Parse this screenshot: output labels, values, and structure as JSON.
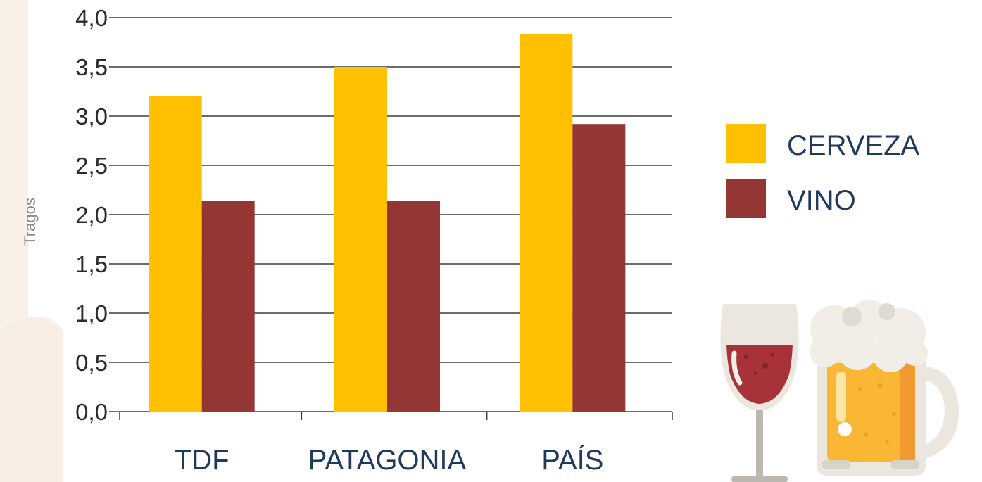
{
  "chart_data": {
    "type": "bar",
    "categories": [
      "TDF",
      "PATAGONIA",
      "PAÍS"
    ],
    "series": [
      {
        "name": "CERVEZA",
        "color": "#fec000",
        "values": [
          3.2,
          3.5,
          3.83
        ]
      },
      {
        "name": "VINO",
        "color": "#943634",
        "values": [
          2.14,
          2.14,
          2.92
        ]
      }
    ],
    "ylabel": "Tragos",
    "ylim": [
      0,
      4
    ],
    "yticks": [
      0,
      0.5,
      1,
      1.5,
      2,
      2.5,
      3,
      3.5,
      4
    ],
    "ytick_labels": [
      "0,0",
      "0,5",
      "1,0",
      "1,5",
      "2,0",
      "2,5",
      "3,0",
      "3,5",
      "4,0"
    ],
    "grid": "horizontal",
    "legend_position": "right",
    "illustration": [
      "wine-glass-icon",
      "beer-mug-icon"
    ]
  }
}
